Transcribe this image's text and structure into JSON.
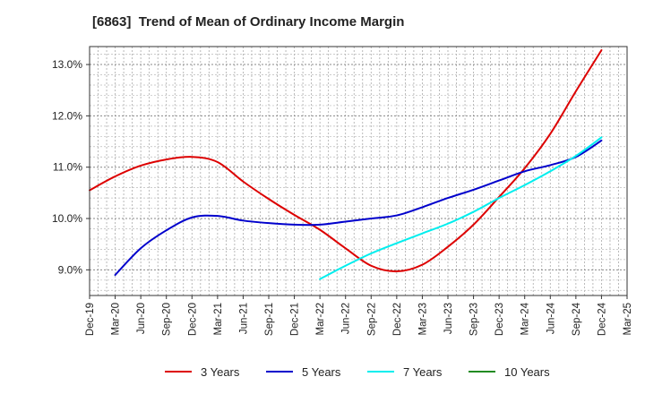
{
  "chart_data": {
    "type": "line",
    "title": "[6863]  Trend of Mean of Ordinary Income Margin",
    "xlabel": "",
    "ylabel": "",
    "x_ticks": [
      "Dec-19",
      "Mar-20",
      "Jun-20",
      "Sep-20",
      "Dec-20",
      "Mar-21",
      "Jun-21",
      "Sep-21",
      "Dec-21",
      "Mar-22",
      "Jun-22",
      "Sep-22",
      "Dec-22",
      "Mar-23",
      "Jun-23",
      "Sep-23",
      "Dec-23",
      "Mar-24",
      "Jun-24",
      "Sep-24",
      "Dec-24",
      "Mar-25"
    ],
    "y_ticks": [
      "9.0%",
      "10.0%",
      "11.0%",
      "12.0%",
      "13.0%"
    ],
    "y_tick_values": [
      9.0,
      10.0,
      11.0,
      12.0,
      13.0
    ],
    "ylim": [
      8.5,
      13.35
    ],
    "grid": true,
    "legend_position": "bottom",
    "series": [
      {
        "name": "3 Years",
        "color": "#dd0000",
        "points": [
          [
            "Dec-19",
            10.55
          ],
          [
            "Mar-20",
            10.82
          ],
          [
            "Jun-20",
            11.03
          ],
          [
            "Sep-20",
            11.15
          ],
          [
            "Dec-20",
            11.2
          ],
          [
            "Mar-21",
            11.1
          ],
          [
            "Jun-21",
            10.72
          ],
          [
            "Sep-21",
            10.38
          ],
          [
            "Dec-21",
            10.07
          ],
          [
            "Mar-22",
            9.78
          ],
          [
            "Jun-22",
            9.42
          ],
          [
            "Sep-22",
            9.08
          ],
          [
            "Dec-22",
            8.97
          ],
          [
            "Mar-23",
            9.1
          ],
          [
            "Jun-23",
            9.45
          ],
          [
            "Sep-23",
            9.88
          ],
          [
            "Dec-23",
            10.42
          ],
          [
            "Mar-24",
            10.98
          ],
          [
            "Jun-24",
            11.65
          ],
          [
            "Sep-24",
            12.48
          ],
          [
            "Dec-24",
            13.28
          ]
        ]
      },
      {
        "name": "5 Years",
        "color": "#0000cc",
        "points": [
          [
            "Mar-20",
            8.9
          ],
          [
            "Jun-20",
            9.42
          ],
          [
            "Sep-20",
            9.77
          ],
          [
            "Dec-20",
            10.02
          ],
          [
            "Mar-21",
            10.05
          ],
          [
            "Jun-21",
            9.96
          ],
          [
            "Sep-21",
            9.91
          ],
          [
            "Dec-21",
            9.88
          ],
          [
            "Mar-22",
            9.88
          ],
          [
            "Jun-22",
            9.94
          ],
          [
            "Sep-22",
            10.0
          ],
          [
            "Dec-22",
            10.06
          ],
          [
            "Mar-23",
            10.22
          ],
          [
            "Jun-23",
            10.4
          ],
          [
            "Sep-23",
            10.56
          ],
          [
            "Dec-23",
            10.74
          ],
          [
            "Mar-24",
            10.92
          ],
          [
            "Jun-24",
            11.04
          ],
          [
            "Sep-24",
            11.2
          ],
          [
            "Dec-24",
            11.52
          ]
        ]
      },
      {
        "name": "7 Years",
        "color": "#00eeee",
        "points": [
          [
            "Mar-22",
            8.82
          ],
          [
            "Jun-22",
            9.08
          ],
          [
            "Sep-22",
            9.32
          ],
          [
            "Dec-22",
            9.52
          ],
          [
            "Mar-23",
            9.71
          ],
          [
            "Jun-23",
            9.9
          ],
          [
            "Sep-23",
            10.13
          ],
          [
            "Dec-23",
            10.4
          ],
          [
            "Mar-24",
            10.65
          ],
          [
            "Jun-24",
            10.92
          ],
          [
            "Sep-24",
            11.22
          ],
          [
            "Dec-24",
            11.58
          ]
        ]
      },
      {
        "name": "10 Years",
        "color": "#228b22",
        "points": []
      }
    ]
  }
}
